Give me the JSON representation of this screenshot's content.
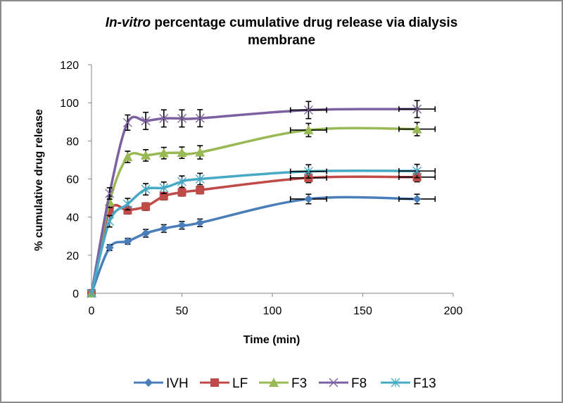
{
  "chart_data": {
    "type": "line",
    "title_italic": "In-vitro",
    "title_rest": " percentage cumulative drug release via dialysis",
    "title_line2": "membrane",
    "xlabel": "Time  (min)",
    "ylabel": "% cumulative drug release",
    "xlim": [
      0,
      200
    ],
    "ylim": [
      0,
      120
    ],
    "xticks": [
      0,
      50,
      100,
      150,
      200
    ],
    "yticks": [
      0,
      20,
      40,
      60,
      80,
      100,
      120
    ],
    "grid": false,
    "legend_position": "bottom",
    "x": [
      0,
      10,
      20,
      30,
      40,
      50,
      60,
      120,
      180
    ],
    "x_error": [
      0,
      0,
      0,
      0,
      0,
      0,
      0,
      10,
      10
    ],
    "series": [
      {
        "name": "IVH",
        "color": "#4a7ebb",
        "marker": "diamond",
        "values": [
          0,
          24,
          27.3,
          31.5,
          34,
          35.7,
          37,
          49.5,
          49.5
        ],
        "errors": [
          0,
          1.5,
          1.5,
          2,
          2,
          2,
          2,
          2.5,
          2.5
        ]
      },
      {
        "name": "LF",
        "color": "#be4b48",
        "marker": "square",
        "values": [
          0,
          43,
          43.6,
          45.5,
          51,
          53,
          54.2,
          60.6,
          61
        ],
        "errors": [
          0,
          2,
          2,
          2,
          2,
          2,
          2,
          2.5,
          2.5
        ]
      },
      {
        "name": "F3",
        "color": "#98b954",
        "marker": "triangle",
        "values": [
          0,
          48,
          71.6,
          72.4,
          73.6,
          73.8,
          74,
          85.7,
          86.2
        ],
        "errors": [
          0,
          3,
          3,
          3,
          3,
          3,
          3.5,
          3.5,
          3.5
        ]
      },
      {
        "name": "F8",
        "color": "#7d60a0",
        "marker": "x",
        "values": [
          0,
          52.4,
          89.6,
          90.5,
          91.8,
          91.8,
          91.9,
          96.2,
          96.7
        ],
        "errors": [
          0,
          3,
          4,
          4.5,
          4.5,
          4.5,
          4.5,
          4.5,
          4.5
        ]
      },
      {
        "name": "F13",
        "color": "#46aac5",
        "marker": "star",
        "values": [
          0,
          37.8,
          46.8,
          54.6,
          55.4,
          58.6,
          60,
          64,
          64.2
        ],
        "errors": [
          0,
          3,
          3,
          3,
          3,
          3,
          3,
          3.5,
          3.5
        ]
      }
    ]
  }
}
